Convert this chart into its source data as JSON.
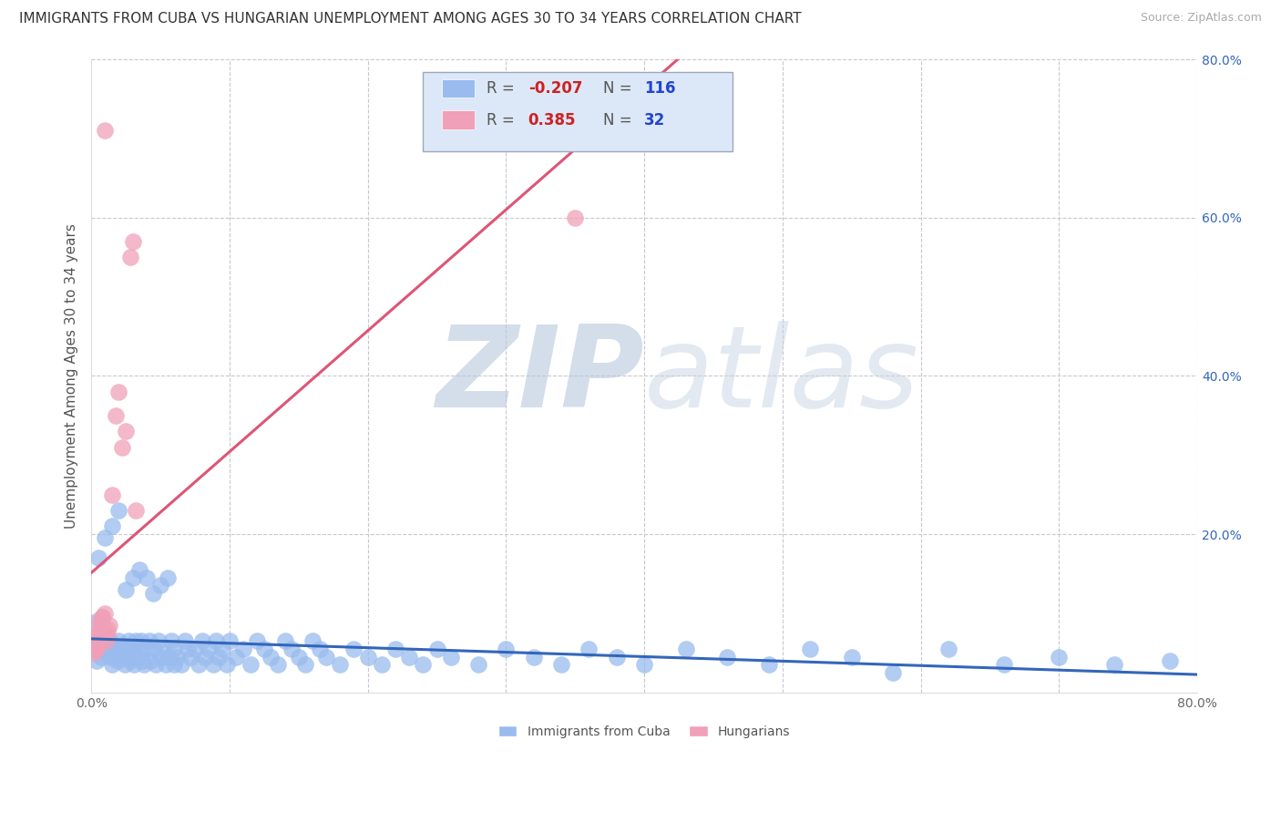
{
  "title": "IMMIGRANTS FROM CUBA VS HUNGARIAN UNEMPLOYMENT AMONG AGES 30 TO 34 YEARS CORRELATION CHART",
  "source": "Source: ZipAtlas.com",
  "ylabel": "Unemployment Among Ages 30 to 34 years",
  "xlim": [
    0,
    0.8
  ],
  "ylim": [
    0,
    0.8
  ],
  "xticks": [
    0.0,
    0.1,
    0.2,
    0.3,
    0.4,
    0.5,
    0.6,
    0.7,
    0.8
  ],
  "yticks": [
    0.0,
    0.2,
    0.4,
    0.6,
    0.8
  ],
  "background_color": "#ffffff",
  "grid_color": "#c8c8d0",
  "watermark": "ZIPatlas",
  "watermark_color": "#ccd4e0",
  "series": [
    {
      "label": "Immigrants from Cuba",
      "R": -0.207,
      "N": 116,
      "color": "#99bbee",
      "trend_color": "#3366bb",
      "x": [
        0.002,
        0.003,
        0.004,
        0.005,
        0.006,
        0.007,
        0.008,
        0.009,
        0.01,
        0.011,
        0.012,
        0.013,
        0.014,
        0.015,
        0.016,
        0.017,
        0.018,
        0.019,
        0.02,
        0.021,
        0.022,
        0.023,
        0.024,
        0.025,
        0.026,
        0.027,
        0.028,
        0.03,
        0.031,
        0.032,
        0.033,
        0.035,
        0.036,
        0.037,
        0.038,
        0.04,
        0.042,
        0.043,
        0.045,
        0.047,
        0.049,
        0.05,
        0.052,
        0.054,
        0.056,
        0.058,
        0.06,
        0.06,
        0.062,
        0.065,
        0.068,
        0.07,
        0.072,
        0.075,
        0.078,
        0.08,
        0.082,
        0.085,
        0.088,
        0.09,
        0.092,
        0.095,
        0.098,
        0.1,
        0.105,
        0.11,
        0.115,
        0.12,
        0.125,
        0.13,
        0.135,
        0.14,
        0.145,
        0.15,
        0.155,
        0.16,
        0.165,
        0.17,
        0.18,
        0.19,
        0.2,
        0.21,
        0.22,
        0.23,
        0.24,
        0.25,
        0.26,
        0.28,
        0.3,
        0.32,
        0.34,
        0.36,
        0.38,
        0.4,
        0.43,
        0.46,
        0.49,
        0.52,
        0.55,
        0.58,
        0.62,
        0.66,
        0.7,
        0.74,
        0.78,
        0.005,
        0.01,
        0.015,
        0.02,
        0.025,
        0.03,
        0.035,
        0.04,
        0.045,
        0.05,
        0.055
      ],
      "y": [
        0.06,
        0.09,
        0.04,
        0.055,
        0.065,
        0.045,
        0.055,
        0.06,
        0.075,
        0.05,
        0.055,
        0.065,
        0.045,
        0.035,
        0.055,
        0.045,
        0.06,
        0.04,
        0.065,
        0.045,
        0.055,
        0.06,
        0.035,
        0.045,
        0.055,
        0.065,
        0.04,
        0.055,
        0.035,
        0.065,
        0.045,
        0.055,
        0.065,
        0.04,
        0.035,
        0.055,
        0.065,
        0.04,
        0.055,
        0.035,
        0.065,
        0.045,
        0.055,
        0.035,
        0.045,
        0.065,
        0.055,
        0.035,
        0.045,
        0.035,
        0.065,
        0.055,
        0.045,
        0.055,
        0.035,
        0.065,
        0.045,
        0.055,
        0.035,
        0.065,
        0.045,
        0.055,
        0.035,
        0.065,
        0.045,
        0.055,
        0.035,
        0.065,
        0.055,
        0.045,
        0.035,
        0.065,
        0.055,
        0.045,
        0.035,
        0.065,
        0.055,
        0.045,
        0.035,
        0.055,
        0.045,
        0.035,
        0.055,
        0.045,
        0.035,
        0.055,
        0.045,
        0.035,
        0.055,
        0.045,
        0.035,
        0.055,
        0.045,
        0.035,
        0.055,
        0.045,
        0.035,
        0.055,
        0.045,
        0.025,
        0.055,
        0.035,
        0.045,
        0.035,
        0.04,
        0.17,
        0.195,
        0.21,
        0.23,
        0.13,
        0.145,
        0.155,
        0.145,
        0.125,
        0.135,
        0.145
      ]
    },
    {
      "label": "Hungarians",
      "R": 0.385,
      "N": 32,
      "color": "#f0a0b8",
      "trend_color": "#dd5577",
      "x": [
        0.002,
        0.003,
        0.004,
        0.005,
        0.006,
        0.007,
        0.008,
        0.009,
        0.01,
        0.011,
        0.012,
        0.013,
        0.015,
        0.018,
        0.02,
        0.022,
        0.025,
        0.028,
        0.03,
        0.032,
        0.001,
        0.002,
        0.003,
        0.004,
        0.002,
        0.003,
        0.007,
        0.012,
        0.008,
        0.005,
        0.35,
        0.01
      ],
      "y": [
        0.07,
        0.06,
        0.055,
        0.075,
        0.09,
        0.085,
        0.095,
        0.08,
        0.1,
        0.065,
        0.075,
        0.085,
        0.25,
        0.35,
        0.38,
        0.31,
        0.33,
        0.55,
        0.57,
        0.23,
        0.055,
        0.065,
        0.075,
        0.06,
        0.05,
        0.06,
        0.07,
        0.08,
        0.095,
        0.06,
        0.6,
        0.71
      ]
    }
  ],
  "legend_box_color": "#dce8f8",
  "legend_box_edge": "#99aabb",
  "title_fontsize": 11,
  "axis_label_fontsize": 11,
  "tick_fontsize": 10,
  "legend_fontsize": 12
}
